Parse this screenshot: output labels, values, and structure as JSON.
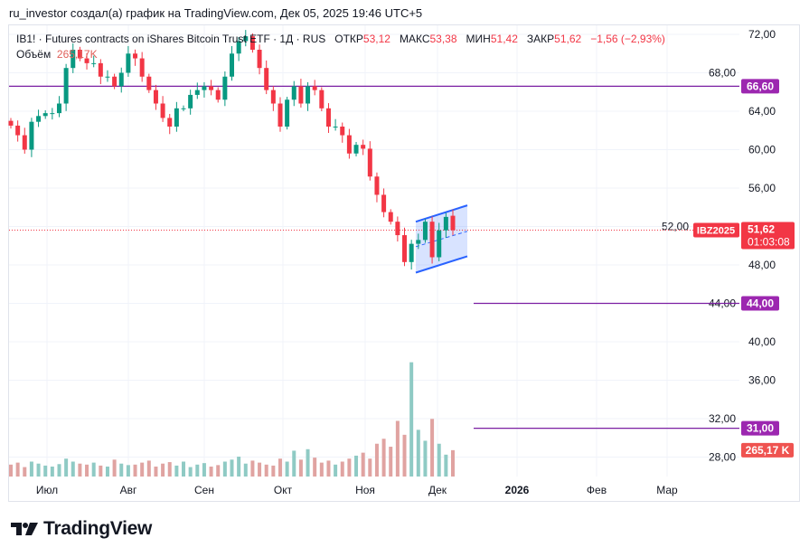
{
  "caption": "ru_investor создал(а) график на TradingView.com, Дек 05, 2025 19:46 UTC+5",
  "legend": {
    "symbol_line": "IB1! · Futures contracts on iShares Bitcoin Trust ETF · 1Д · RUS",
    "open_label": "ОТКР",
    "open": "53,12",
    "high_label": "МАКС",
    "high": "53,38",
    "low_label": "МИН",
    "low": "51,42",
    "close_label": "ЗАКР",
    "close": "51,62",
    "change": "−1,56 (−2,93%)",
    "volume_label": "Объём",
    "volume": "265,17K"
  },
  "footer": {
    "brand": "TradingView",
    "logo_icon": "tradingview-logo-icon"
  },
  "colors": {
    "up": "#089981",
    "down": "#f23645",
    "level": "#7b1fa2",
    "level_label": "#9c27b0",
    "channel": "#2962ff",
    "volume_up": "#8fcac4",
    "volume_down": "#e0a3a1"
  },
  "chart_data": {
    "type": "candlestick",
    "interval": "1Д",
    "ylim": [
      26.4,
      73
    ],
    "y_ticks": [
      "72,00",
      "68,00",
      "64,00",
      "60,00",
      "56,00",
      "52,00",
      "48,00",
      "44,00",
      "40,00",
      "36,00",
      "32,00",
      "28,00"
    ],
    "x_ticks": [
      "Июл",
      "Авг",
      "Сен",
      "Окт",
      "Ноя",
      "Дек",
      "2026",
      "Фев",
      "Мар"
    ],
    "grid": true,
    "last_open": 53.12,
    "close": [
      62.5,
      61.5,
      60,
      62.9,
      63.5,
      63.8,
      63.8,
      64.8,
      68.5,
      70.4,
      69.5,
      69,
      69,
      67.6,
      67.6,
      66.6,
      68,
      70,
      69.5,
      67.6,
      66.2,
      64.8,
      63.3,
      62.4,
      64.3,
      64.3,
      65.7,
      66.2,
      66.6,
      66.2,
      65.2,
      67.6,
      70,
      71.3,
      71.8,
      70.4,
      68.5,
      66.2,
      64.8,
      62.4,
      65.2,
      66.6,
      64.8,
      66.6,
      66.2,
      64.3,
      62.4,
      62.4,
      61.5,
      59.6,
      60.5,
      60.1,
      57.2,
      55.3,
      53.5,
      52.5,
      51.1,
      48.3,
      50.2,
      50.6,
      52.5,
      48.8,
      51.6,
      53,
      51.62
    ],
    "volume_k": [
      120,
      140,
      95,
      150,
      130,
      110,
      100,
      125,
      180,
      150,
      130,
      120,
      140,
      110,
      100,
      170,
      130,
      115,
      120,
      140,
      160,
      100,
      130,
      145,
      110,
      150,
      95,
      120,
      135,
      100,
      115,
      150,
      170,
      200,
      130,
      160,
      140,
      120,
      110,
      180,
      150,
      260,
      170,
      275,
      190,
      140,
      160,
      120,
      150,
      180,
      210,
      240,
      180,
      330,
      380,
      300,
      560,
      420,
      1150,
      470,
      360,
      580,
      330,
      220,
      265.17
    ],
    "levels": [
      {
        "value": 66.6,
        "label": "66,60",
        "extent": "full"
      },
      {
        "value": 44.0,
        "label": "44,00",
        "extent": "right"
      },
      {
        "value": 31.0,
        "label": "31,00",
        "extent": "right"
      }
    ],
    "channel": {
      "upper": [
        52.5,
        54.2
      ],
      "lower": [
        47.2,
        48.9
      ],
      "middle": [
        49.9,
        51.5
      ]
    },
    "last_price": {
      "ticker": "IBZ2025",
      "price": "51,62",
      "countdown": "01:03:08"
    },
    "last_volume_label": "265,17 K"
  }
}
